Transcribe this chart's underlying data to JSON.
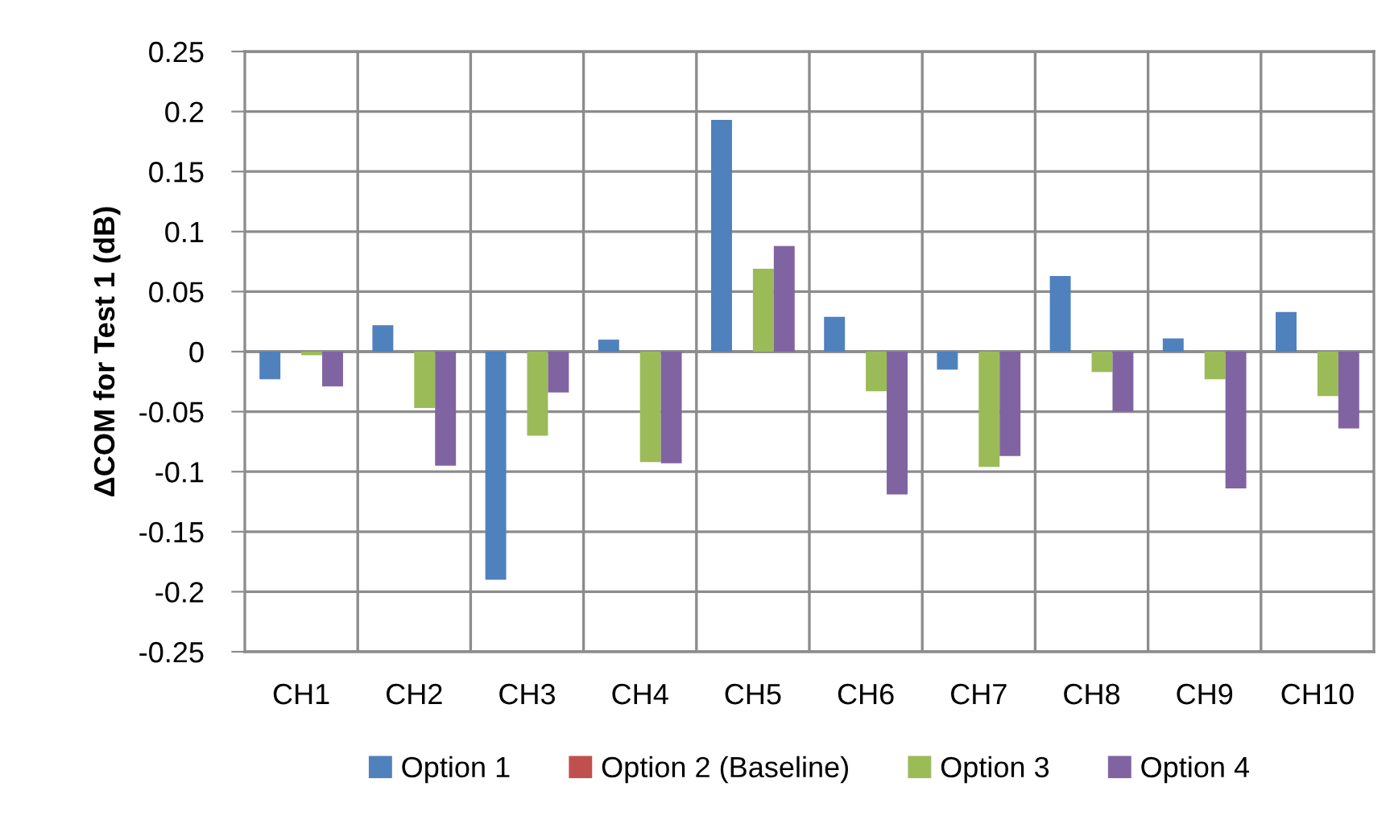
{
  "chart_data": {
    "type": "bar",
    "ylabel": "ΔCOM for Test 1 (dB)",
    "categories": [
      "CH1",
      "CH2",
      "CH3",
      "CH4",
      "CH5",
      "CH6",
      "CH7",
      "CH8",
      "CH9",
      "CH10"
    ],
    "series": [
      {
        "name": "Option 1",
        "color": "#4f81bd",
        "values": [
          -0.023,
          0.022,
          -0.19,
          0.01,
          0.193,
          0.029,
          -0.015,
          0.063,
          0.011,
          0.033
        ]
      },
      {
        "name": "Option 2 (Baseline)",
        "color": "#c0504d",
        "values": [
          0,
          0,
          0,
          0,
          0,
          0,
          0,
          0,
          0,
          0
        ]
      },
      {
        "name": "Option 3",
        "color": "#9bbb59",
        "values": [
          -0.003,
          -0.047,
          -0.07,
          -0.092,
          0.069,
          -0.033,
          -0.096,
          -0.017,
          -0.023,
          -0.037
        ]
      },
      {
        "name": "Option 4",
        "color": "#8064a2",
        "values": [
          -0.029,
          -0.095,
          -0.034,
          -0.093,
          0.088,
          -0.119,
          -0.087,
          -0.05,
          -0.114,
          -0.064
        ]
      }
    ],
    "ylim": [
      -0.25,
      0.25
    ],
    "yticks": [
      -0.25,
      -0.2,
      -0.15,
      -0.1,
      -0.05,
      0,
      0.05,
      0.1,
      0.15,
      0.2,
      0.25
    ],
    "grid": true,
    "legend": "bottom"
  }
}
